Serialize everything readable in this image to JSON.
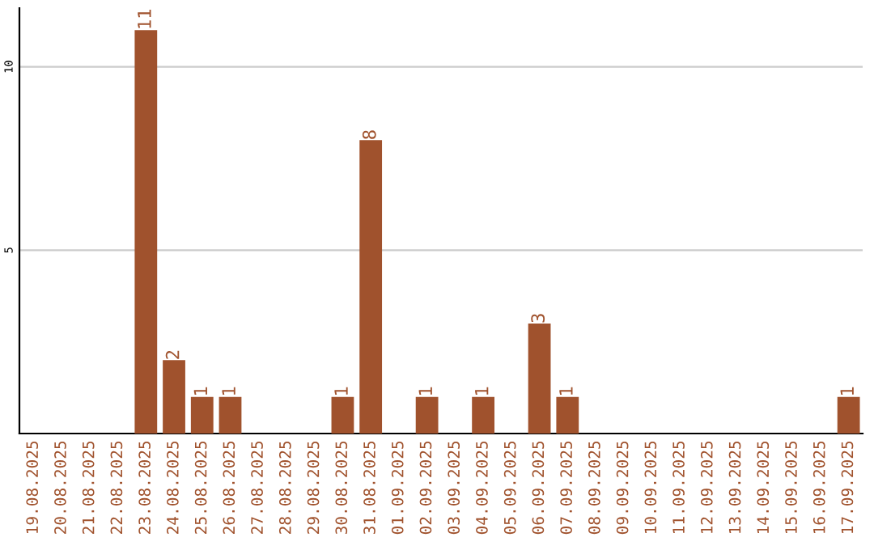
{
  "chart_data": {
    "type": "bar",
    "categories": [
      "19.08.2025",
      "20.08.2025",
      "21.08.2025",
      "22.08.2025",
      "23.08.2025",
      "24.08.2025",
      "25.08.2025",
      "26.08.2025",
      "27.08.2025",
      "28.08.2025",
      "29.08.2025",
      "30.08.2025",
      "31.08.2025",
      "01.09.2025",
      "02.09.2025",
      "03.09.2025",
      "04.09.2025",
      "05.09.2025",
      "06.09.2025",
      "07.09.2025",
      "08.09.2025",
      "09.09.2025",
      "10.09.2025",
      "11.09.2025",
      "12.09.2025",
      "13.09.2025",
      "14.09.2025",
      "15.09.2025",
      "16.09.2025",
      "17.09.2025"
    ],
    "values": [
      0,
      0,
      0,
      0,
      11,
      2,
      1,
      1,
      0,
      0,
      0,
      1,
      8,
      0,
      1,
      0,
      1,
      0,
      3,
      1,
      0,
      0,
      0,
      0,
      0,
      0,
      0,
      0,
      0,
      1
    ],
    "value_labels": [
      null,
      null,
      null,
      null,
      "11",
      "2",
      "1",
      "1",
      null,
      null,
      null,
      "1",
      "8",
      null,
      "1",
      null,
      "1",
      null,
      "3",
      "1",
      null,
      null,
      null,
      null,
      null,
      null,
      null,
      null,
      null,
      "1"
    ],
    "color": "#a0522d",
    "ylim": [
      0,
      11.6
    ],
    "yticks": [
      5,
      10
    ],
    "grid": "y"
  }
}
